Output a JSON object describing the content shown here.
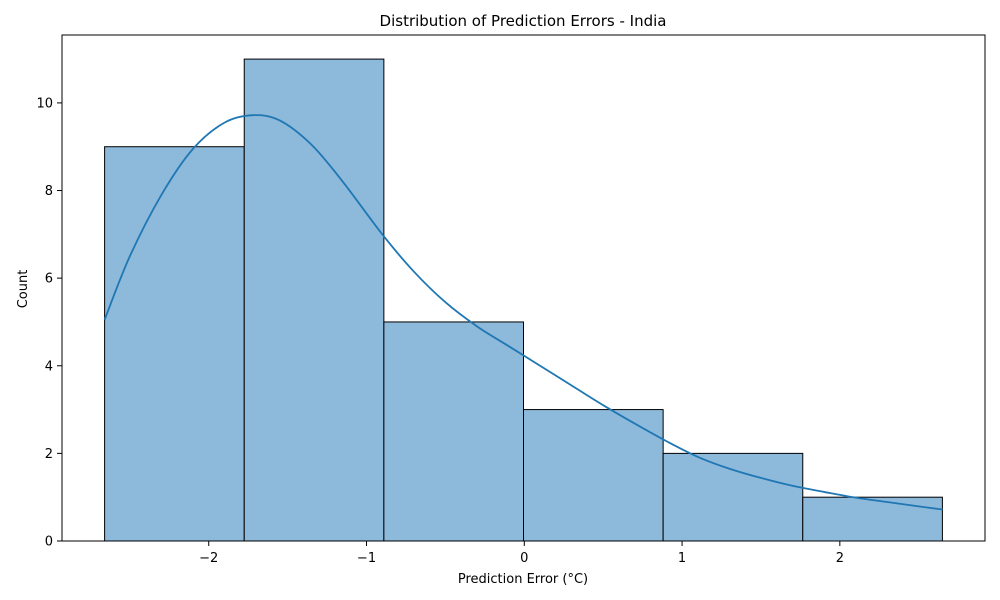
{
  "chart_data": {
    "type": "bar",
    "title": "Distribution of Prediction Errors - India",
    "xlabel": "Prediction Error (°C)",
    "ylabel": "Count",
    "bins": [
      {
        "x0": -2.66,
        "x1": -1.775,
        "count": 9
      },
      {
        "x0": -1.775,
        "x1": -0.89,
        "count": 11
      },
      {
        "x0": -0.89,
        "x1": -0.005,
        "count": 5
      },
      {
        "x0": -0.005,
        "x1": 0.88,
        "count": 3
      },
      {
        "x0": 0.88,
        "x1": 1.765,
        "count": 2
      },
      {
        "x0": 1.765,
        "x1": 2.65,
        "count": 1
      }
    ],
    "kde": {
      "name": "",
      "x": [
        -2.66,
        -2.5,
        -2.3,
        -2.1,
        -1.9,
        -1.72,
        -1.55,
        -1.35,
        -1.15,
        -0.9,
        -0.7,
        -0.5,
        -0.3,
        -0.1,
        0.1,
        0.3,
        0.5,
        0.7,
        0.9,
        1.1,
        1.3,
        1.5,
        1.7,
        1.9,
        2.1,
        2.3,
        2.5,
        2.65
      ],
      "y": [
        5.05,
        6.5,
        7.9,
        8.95,
        9.55,
        9.72,
        9.6,
        9.05,
        8.2,
        7.0,
        6.15,
        5.45,
        4.9,
        4.45,
        4.0,
        3.55,
        3.1,
        2.68,
        2.28,
        1.92,
        1.65,
        1.44,
        1.26,
        1.12,
        0.99,
        0.89,
        0.79,
        0.72
      ]
    },
    "xticks": [
      -2,
      -1,
      0,
      1,
      2
    ],
    "xtick_labels": [
      "−2",
      "−1",
      "0",
      "1",
      "2"
    ],
    "yticks": [
      0,
      2,
      4,
      6,
      8,
      10
    ],
    "yticks_labels": [
      "0",
      "2",
      "4",
      "6",
      "8",
      "10"
    ],
    "xlim": [
      -2.93,
      2.92
    ],
    "ylim": [
      0,
      11.55
    ],
    "grid": false,
    "legend": false,
    "colors": {
      "bar_fill": "#8db9da",
      "bar_edge": "#000000",
      "kde_line": "#1f77b4"
    }
  }
}
